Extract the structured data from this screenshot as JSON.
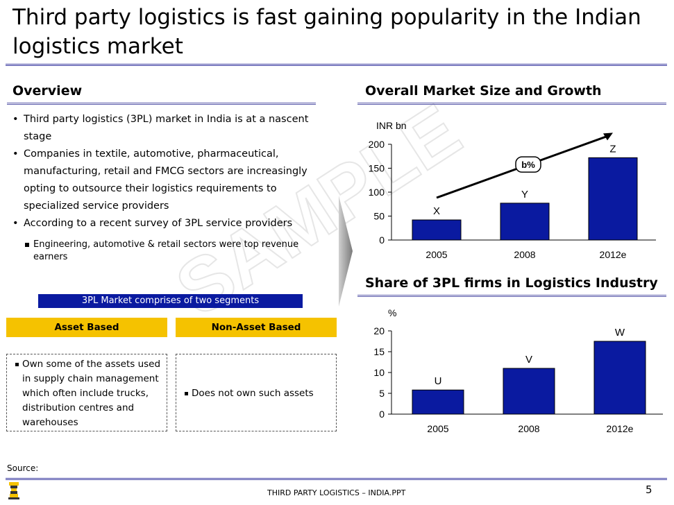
{
  "title": "Third party logistics is fast gaining popularity in the Indian logistics market",
  "overview": {
    "heading": "Overview",
    "bullets": [
      "Third party logistics (3PL) market in India is at a nascent stage",
      "Companies in textile, automotive, pharmaceutical, manufacturing, retail and FMCG sectors are increasingly opting to outsource their logistics requirements to specialized service providers",
      "According to a recent survey of 3PL service providers"
    ],
    "sub_bullet": "Engineering, automotive  & retail sectors were top revenue earners",
    "segments_label": "3PL Market comprises of two segments",
    "asset_based": {
      "header": "Asset Based",
      "text": "Own some of the assets used in supply chain management which often include trucks, distribution centres and warehouses"
    },
    "non_asset_based": {
      "header": "Non-Asset Based",
      "text": "Does not own such assets"
    }
  },
  "watermark": "SAMPLE",
  "chart_data": [
    {
      "type": "bar",
      "title": "Overall Market Size and Growth",
      "ylabel": "INR bn",
      "categories": [
        "2005",
        "2008",
        "2012e"
      ],
      "values": [
        42,
        77,
        172
      ],
      "value_labels": [
        "X",
        "Y",
        "Z"
      ],
      "ylim": [
        0,
        200
      ],
      "yticks": [
        0,
        50,
        100,
        150,
        200
      ],
      "growth_label": "b%",
      "colors": {
        "bar": "#0a1aa0"
      }
    },
    {
      "type": "bar",
      "title": "Share of 3PL firms in Logistics Industry",
      "ylabel": "%",
      "categories": [
        "2005",
        "2008",
        "2012e"
      ],
      "values": [
        5.8,
        11,
        17.5
      ],
      "value_labels": [
        "U",
        "V",
        "W"
      ],
      "ylim": [
        0,
        20
      ],
      "yticks": [
        0,
        5,
        10,
        15,
        20
      ],
      "colors": {
        "bar": "#0a1aa0"
      }
    }
  ],
  "footer": {
    "source": "Source:",
    "document": "THIRD PARTY LOGISTICS – INDIA.PPT",
    "page": "5"
  }
}
